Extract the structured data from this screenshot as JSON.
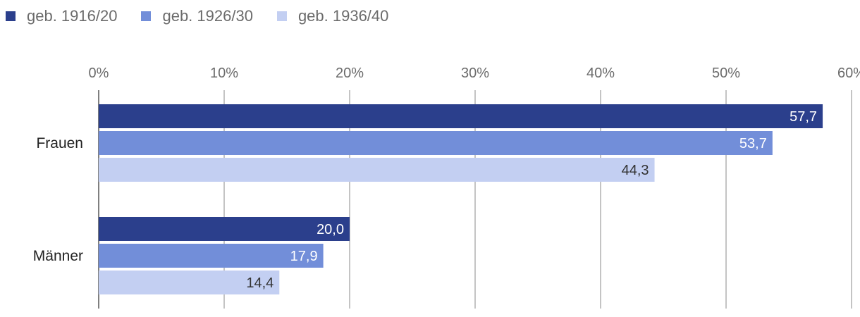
{
  "chart_data": {
    "type": "bar",
    "orientation": "horizontal",
    "categories": [
      "Frauen",
      "Männer"
    ],
    "series": [
      {
        "name": "geb. 1916/20",
        "values": [
          57.7,
          20.0
        ],
        "labels": [
          "57,7",
          "20,0"
        ],
        "color": "#2b3f8c",
        "label_color": "#ffffff"
      },
      {
        "name": "geb. 1926/30",
        "values": [
          53.7,
          17.9
        ],
        "labels": [
          "53,7",
          "17,9"
        ],
        "color": "#728ed9",
        "label_color": "#ffffff"
      },
      {
        "name": "geb. 1936/40",
        "values": [
          44.3,
          14.4
        ],
        "labels": [
          "44,3",
          "14,4"
        ],
        "color": "#c3cff2",
        "label_color": "#333333"
      }
    ],
    "xlim": [
      0,
      60
    ],
    "xticks": [
      0,
      10,
      20,
      30,
      40,
      50,
      60
    ],
    "xtick_labels": [
      "0%",
      "10%",
      "20%",
      "30%",
      "40%",
      "50%",
      "60%"
    ],
    "grid": true,
    "legend_position": "top-left",
    "axis_position": "top"
  }
}
